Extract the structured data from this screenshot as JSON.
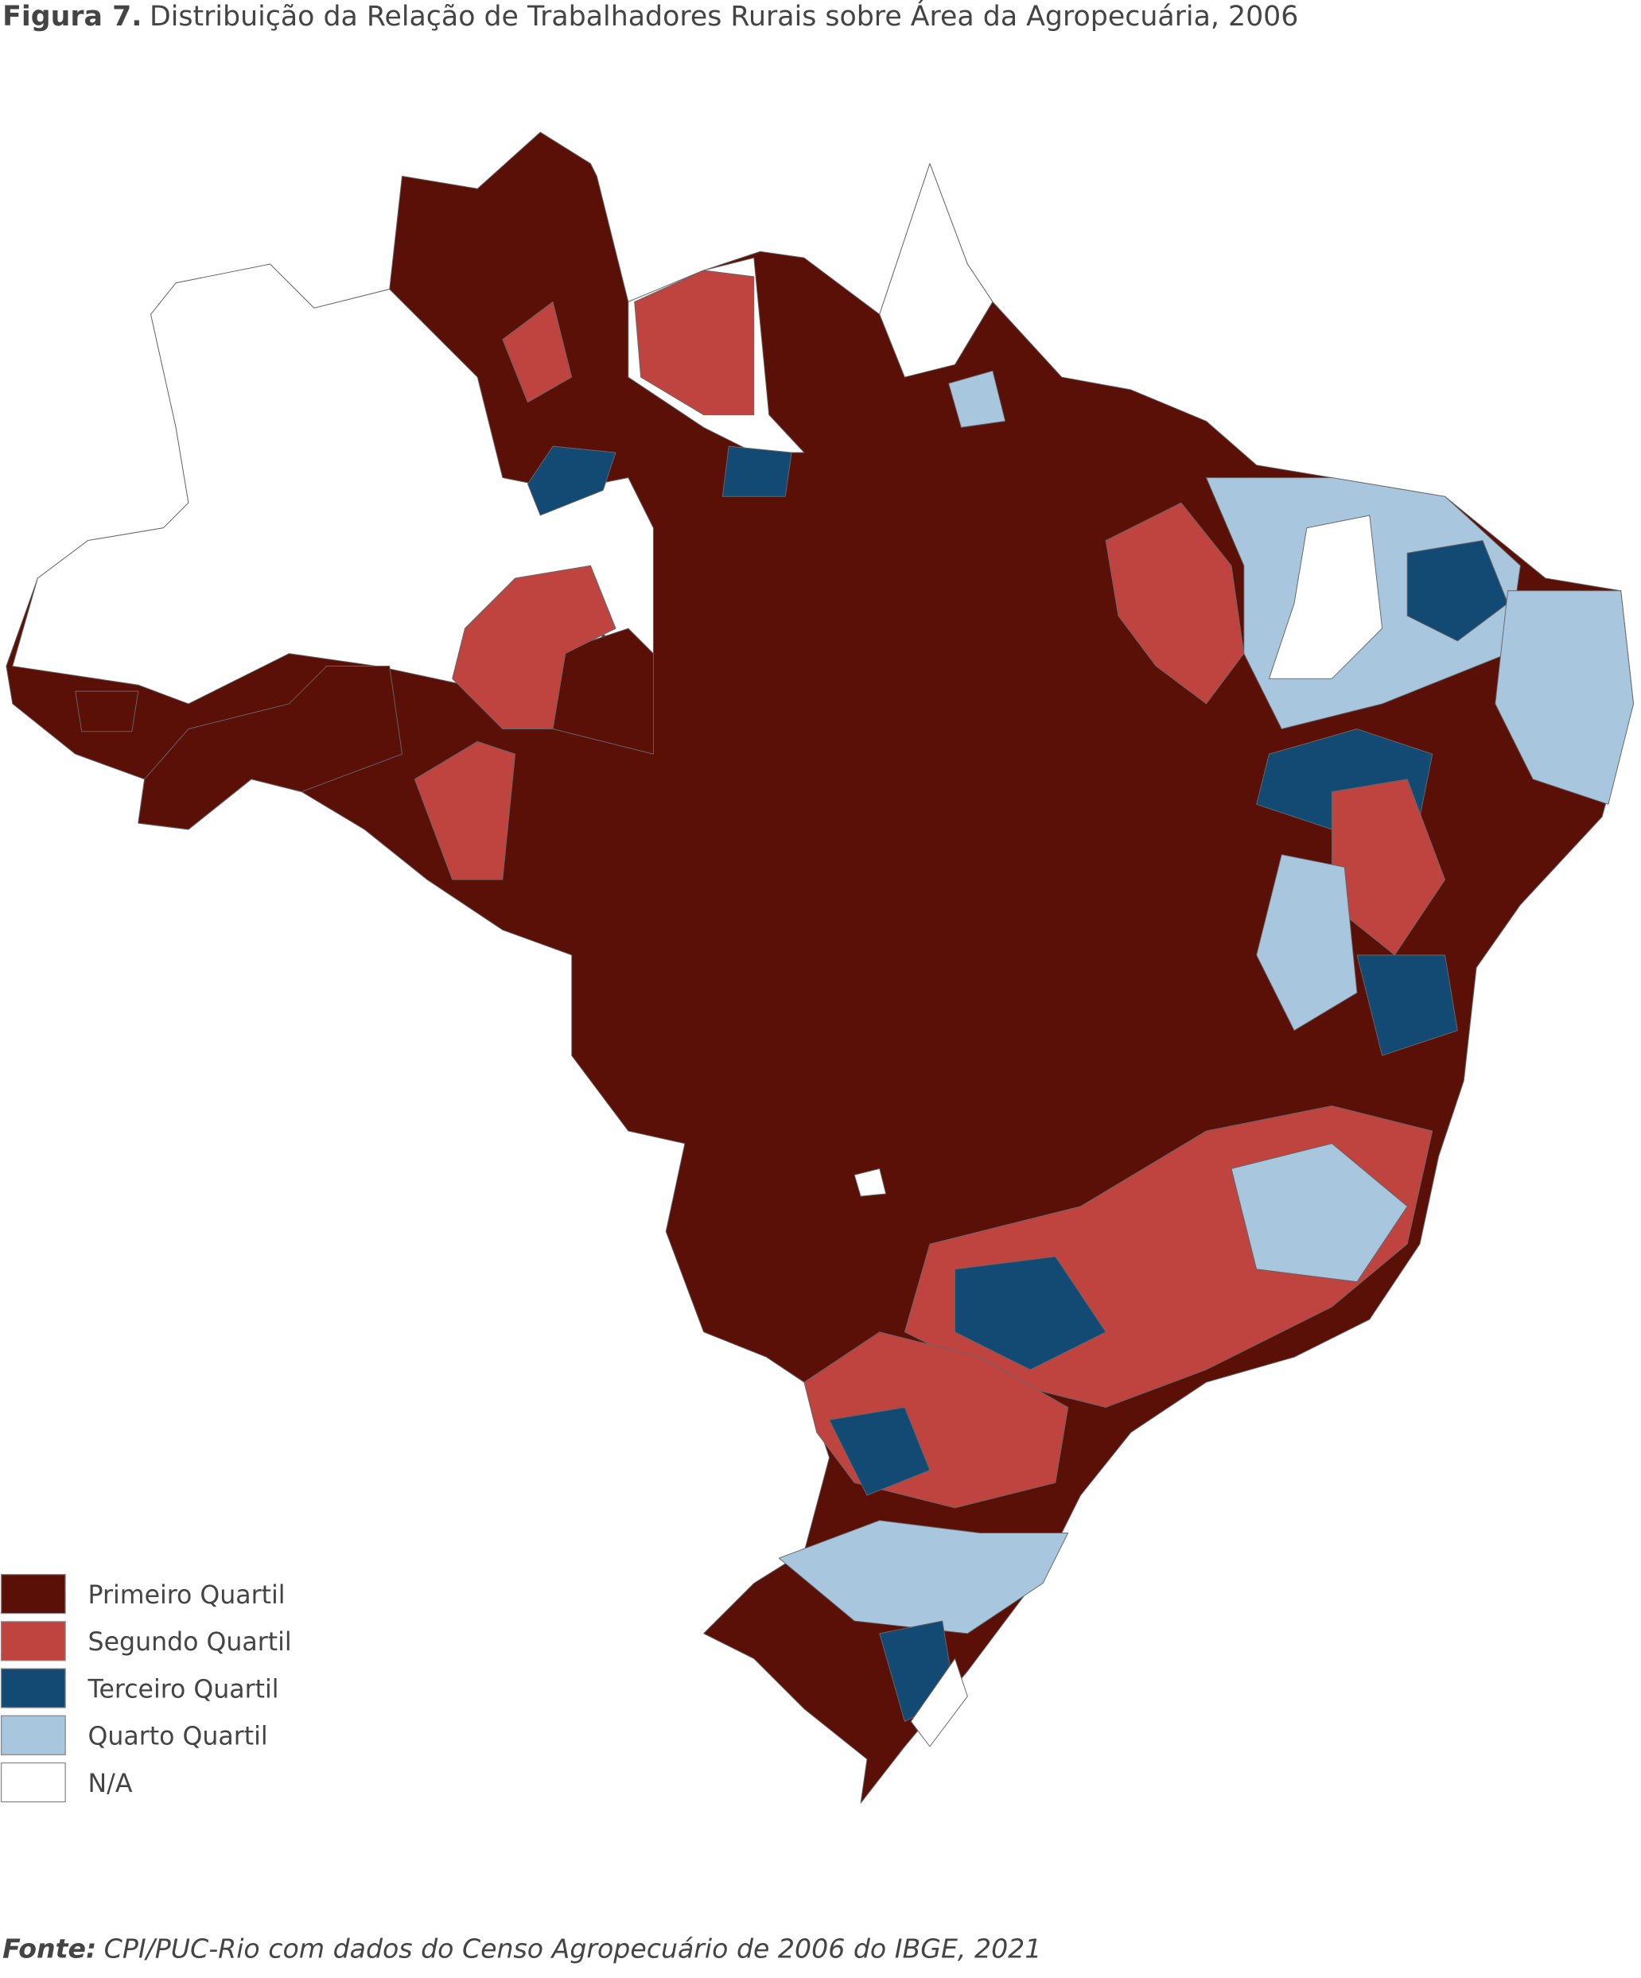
{
  "header": {
    "figure_label": "Figura 7.",
    "title": "Distribuição da Relação de Trabalhadores Rurais sobre Área da Agropecuária, 2006"
  },
  "legend": {
    "items": [
      {
        "label": "Primeiro Quartil",
        "color": "#5a0f07"
      },
      {
        "label": "Segundo Quartil",
        "color": "#bf4440"
      },
      {
        "label": "Terceiro Quartil",
        "color": "#134a74"
      },
      {
        "label": "Quarto Quartil",
        "color": "#a8c6de"
      },
      {
        "label": "N/A",
        "color": "#ffffff"
      }
    ]
  },
  "source": {
    "label": "Fonte:",
    "text": "CPI/PUC-Rio com dados do Censo Agropecuário de 2006 do IBGE, 2021"
  }
}
